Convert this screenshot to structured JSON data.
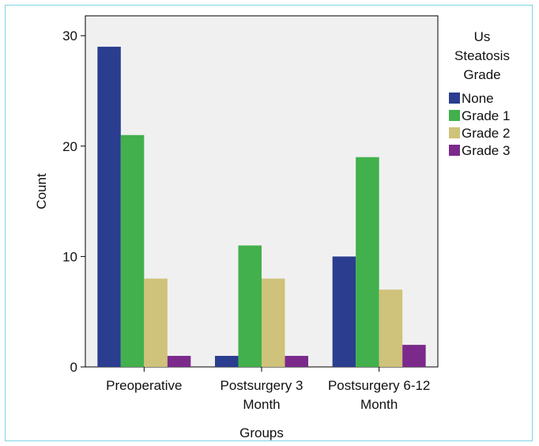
{
  "chart_data": {
    "type": "bar",
    "xlabel": "Groups",
    "ylabel": "Count",
    "categories": [
      [
        "Preoperative"
      ],
      [
        "Postsurgery 3",
        "Month"
      ],
      [
        "Postsurgery 6-12",
        "Month"
      ]
    ],
    "legend_title": [
      "Us",
      "Steatosis",
      "Grade"
    ],
    "legend_placement": "right",
    "series": [
      {
        "name": "None",
        "color": "#2a3d8f",
        "values": [
          29,
          1,
          10
        ]
      },
      {
        "name": "Grade 1",
        "color": "#42b04c",
        "values": [
          21,
          11,
          19
        ]
      },
      {
        "name": "Grade 2",
        "color": "#cfc27a",
        "values": [
          8,
          8,
          7
        ]
      },
      {
        "name": "Grade 3",
        "color": "#7b2a8c",
        "values": [
          1,
          1,
          2
        ]
      }
    ],
    "yticks": [
      0,
      10,
      20,
      30
    ],
    "ylim": [
      0,
      31.8
    ],
    "grid": false,
    "plot_background": "#f0f0f0"
  }
}
